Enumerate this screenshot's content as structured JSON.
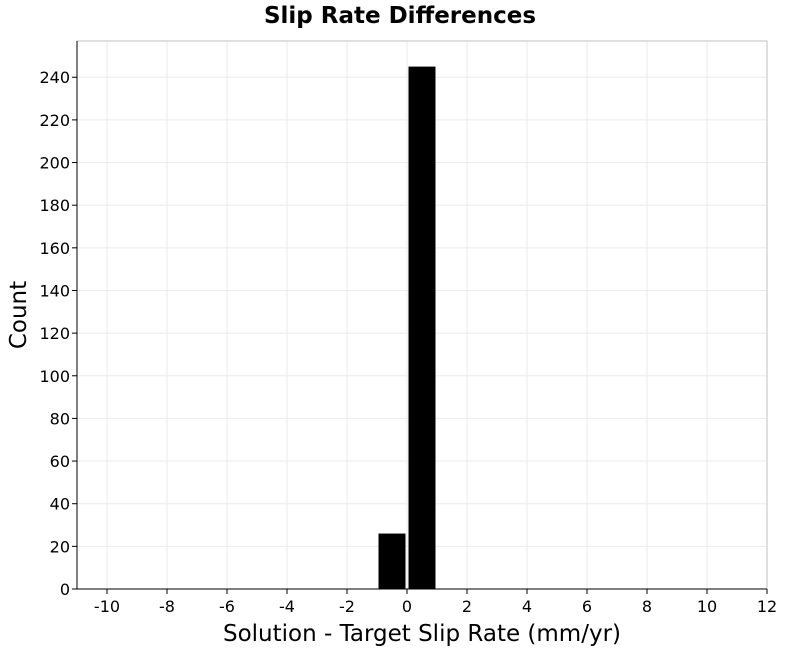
{
  "chart_data": {
    "type": "bar",
    "title": "Slip Rate Differences",
    "xlabel": "Solution - Target Slip Rate (mm/yr)",
    "ylabel": "Count",
    "xlim": [
      -11,
      12
    ],
    "ylim": [
      0,
      257
    ],
    "xticks": [
      "-10",
      "-8",
      "-6",
      "-4",
      "-2",
      "0",
      "2",
      "4",
      "6",
      "8",
      "10",
      "12"
    ],
    "yticks": [
      "0",
      "20",
      "40",
      "60",
      "80",
      "100",
      "120",
      "140",
      "160",
      "180",
      "200",
      "220",
      "240"
    ],
    "bins": [
      {
        "x_start": -1,
        "x_end": 0,
        "count": 26
      },
      {
        "x_start": 0,
        "x_end": 1,
        "count": 245
      }
    ],
    "grid": true,
    "bar_color": "#000000",
    "grid_color": "#ebebeb",
    "frame_color": "#c0c0c0"
  }
}
